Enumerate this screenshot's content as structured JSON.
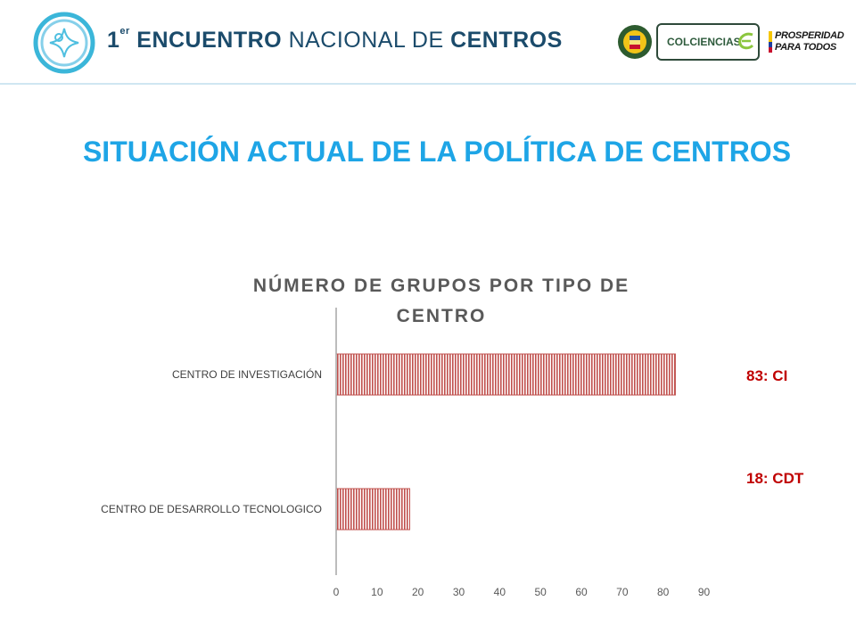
{
  "header": {
    "event_number": "1",
    "event_superscript": "er",
    "event_word_bold": "ENCUENTRO",
    "event_word_light": "NACIONAL DE",
    "event_word_end": "CENTROS",
    "colciencias_label": "COLCIENCIAS",
    "prosperidad_line1": "PROSPERIDAD",
    "prosperidad_line2": "PARA TODOS"
  },
  "slide": {
    "title": "SITUACIÓN ACTUAL DE LA POLÍTICA DE CENTROS"
  },
  "annotations": [
    {
      "text": "83: CI",
      "color": "#c00000"
    },
    {
      "text": "18: CDT",
      "color": "#c00000"
    }
  ],
  "chart_data": {
    "type": "bar",
    "orientation": "horizontal",
    "title": "NÚMERO DE GRUPOS POR TIPO DE CENTRO",
    "categories": [
      "CENTRO DE INVESTIGACIÓN",
      "CENTRO DE DESARROLLO TECNOLOGICO"
    ],
    "values": [
      83,
      18
    ],
    "xlim": [
      0,
      90
    ],
    "xticks": [
      0,
      10,
      20,
      30,
      40,
      50,
      60,
      70,
      80,
      90
    ],
    "grid": false,
    "legend": "none",
    "bar_color": "#c0504d"
  },
  "colors": {
    "title_blue": "#1ea5e6",
    "header_navy": "#1b4b6b",
    "annotation_red": "#c00000",
    "bar_red": "#c0504d"
  }
}
